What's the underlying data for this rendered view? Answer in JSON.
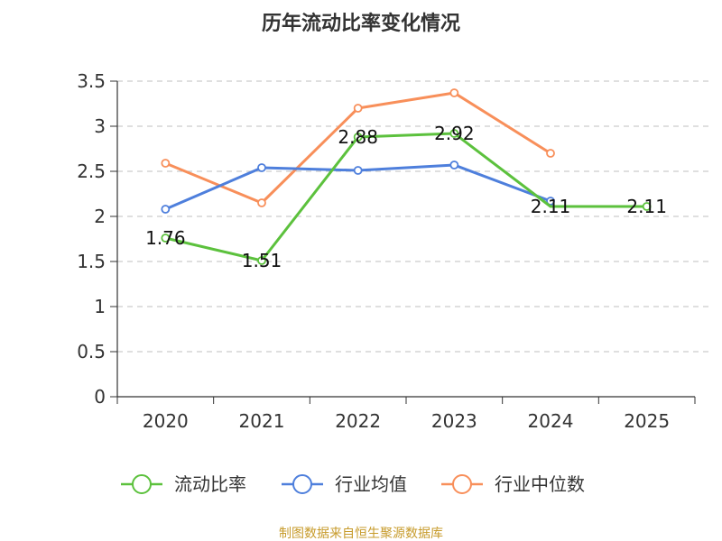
{
  "chart_data": {
    "type": "line",
    "title": "历年流动比率变化情况",
    "categories": [
      "2020",
      "2021",
      "2022",
      "2023",
      "2024",
      "2025"
    ],
    "ylim": [
      0,
      3.5
    ],
    "yticks": [
      0,
      0.5,
      1,
      1.5,
      2,
      2.5,
      3,
      3.5
    ],
    "ytick_labels": [
      "0",
      "0.5",
      "1",
      "1.5",
      "2",
      "2.5",
      "3",
      "3.5"
    ],
    "grid": true,
    "legend_position": "bottom",
    "series": [
      {
        "name": "流动比率",
        "color": "#5cc13d",
        "values": [
          1.76,
          1.51,
          2.88,
          2.92,
          2.11,
          2.11
        ],
        "labels": [
          "1.76",
          "1.51",
          "2.88",
          "2.92",
          "2.11",
          "2.11"
        ],
        "markers": [
          true,
          true,
          true,
          true,
          false,
          true
        ]
      },
      {
        "name": "行业均值",
        "color": "#4e7fdc",
        "values": [
          2.08,
          2.54,
          2.51,
          2.57,
          2.17,
          null
        ],
        "markers": [
          true,
          true,
          true,
          true,
          true,
          false
        ]
      },
      {
        "name": "行业中位数",
        "color": "#f88f5a",
        "values": [
          2.59,
          2.15,
          3.2,
          3.37,
          2.7,
          null
        ],
        "markers": [
          true,
          true,
          true,
          true,
          true,
          false
        ]
      }
    ],
    "source": "制图数据来自恒生聚源数据库",
    "source_color": "#c79b2b"
  }
}
